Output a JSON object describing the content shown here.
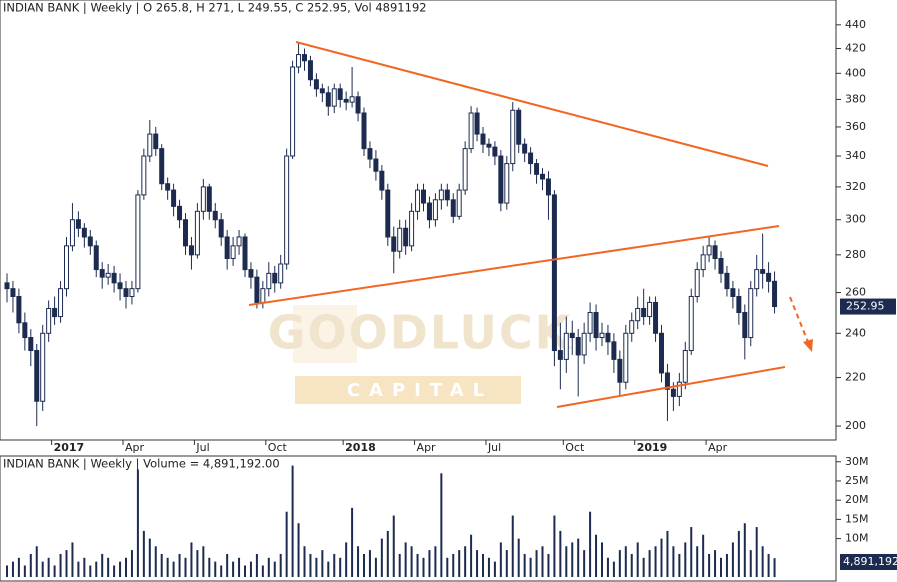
{
  "chart_data": [
    {
      "type": "candlestick",
      "title": "INDIAN BANK | Weekly | O 265.8, H 271, L 249.55, C 252.95, Vol 4891192",
      "categories": [
        null,
        null,
        null,
        null,
        null,
        null,
        null,
        null,
        "2017",
        null,
        null,
        null,
        null,
        null,
        null,
        null,
        null,
        null,
        null,
        null,
        "Apr",
        null,
        null,
        null,
        null,
        null,
        null,
        null,
        null,
        null,
        null,
        null,
        "Jul",
        null,
        null,
        null,
        null,
        null,
        null,
        null,
        null,
        null,
        null,
        null,
        "Oct",
        null,
        null,
        null,
        null,
        null,
        null,
        null,
        null,
        null,
        null,
        null,
        null,
        "2018",
        null,
        null,
        null,
        null,
        null,
        null,
        null,
        null,
        null,
        null,
        null,
        "Apr",
        null,
        null,
        null,
        null,
        null,
        null,
        null,
        null,
        null,
        null,
        null,
        "Jul",
        null,
        null,
        null,
        null,
        null,
        null,
        null,
        null,
        null,
        null,
        null,
        null,
        "Oct",
        null,
        null,
        null,
        null,
        null,
        null,
        null,
        null,
        null,
        null,
        null,
        "2019",
        null,
        null,
        null,
        null,
        null,
        null,
        null,
        null,
        null,
        null,
        null,
        "Apr",
        null,
        null,
        null,
        null,
        null,
        null,
        null,
        null,
        null,
        null,
        null
      ],
      "open": [
        265,
        262,
        258,
        245,
        238,
        232,
        210,
        240,
        252,
        248,
        262,
        285,
        300,
        295,
        290,
        285,
        272,
        268,
        270,
        265,
        262,
        258,
        262,
        315,
        340,
        355,
        345,
        322,
        318,
        308,
        300,
        285,
        280,
        305,
        320,
        305,
        300,
        290,
        278,
        285,
        290,
        272,
        268,
        255,
        262,
        270,
        265,
        275,
        340,
        405,
        415,
        410,
        395,
        388,
        385,
        375,
        388,
        380,
        378,
        382,
        370,
        345,
        338,
        330,
        318,
        290,
        282,
        295,
        285,
        305,
        318,
        310,
        300,
        312,
        318,
        312,
        302,
        318,
        345,
        370,
        355,
        348,
        346,
        340,
        310,
        335,
        372,
        348,
        342,
        335,
        328,
        325,
        315,
        232,
        228,
        240,
        238,
        230,
        240,
        250,
        238,
        240,
        236,
        228,
        218,
        240,
        246,
        252,
        248,
        255,
        240,
        222,
        215,
        212,
        218,
        232,
        258,
        272,
        280,
        285,
        278,
        270,
        262,
        258,
        250,
        238,
        262,
        272,
        270,
        265.8
      ],
      "high": [
        270,
        266,
        262,
        250,
        242,
        235,
        244,
        256,
        258,
        266,
        290,
        310,
        305,
        298,
        294,
        288,
        276,
        275,
        274,
        270,
        266,
        266,
        318,
        345,
        365,
        360,
        348,
        326,
        322,
        312,
        304,
        290,
        310,
        325,
        322,
        310,
        304,
        294,
        290,
        294,
        292,
        276,
        272,
        266,
        276,
        274,
        280,
        345,
        410,
        425,
        420,
        414,
        400,
        392,
        390,
        392,
        392,
        386,
        405,
        386,
        374,
        350,
        344,
        334,
        322,
        296,
        300,
        300,
        310,
        322,
        322,
        314,
        316,
        322,
        322,
        316,
        322,
        350,
        375,
        374,
        360,
        352,
        350,
        344,
        340,
        378,
        374,
        352,
        346,
        338,
        332,
        330,
        318,
        245,
        248,
        246,
        242,
        245,
        255,
        254,
        245,
        244,
        240,
        232,
        244,
        250,
        258,
        262,
        258,
        258,
        244,
        226,
        218,
        222,
        236,
        262,
        276,
        285,
        290,
        288,
        282,
        274,
        266,
        262,
        254,
        266,
        280,
        292,
        276,
        271
      ],
      "low": [
        255,
        250,
        240,
        232,
        225,
        200,
        206,
        236,
        244,
        245,
        258,
        282,
        290,
        284,
        280,
        268,
        262,
        264,
        260,
        256,
        252,
        254,
        260,
        312,
        336,
        340,
        318,
        312,
        302,
        295,
        280,
        272,
        278,
        300,
        300,
        295,
        285,
        272,
        274,
        280,
        268,
        262,
        252,
        252,
        258,
        260,
        262,
        272,
        338,
        400,
        402,
        390,
        382,
        378,
        368,
        370,
        374,
        372,
        374,
        364,
        340,
        332,
        324,
        312,
        285,
        270,
        278,
        280,
        282,
        300,
        305,
        295,
        296,
        306,
        308,
        298,
        300,
        315,
        342,
        350,
        342,
        340,
        334,
        305,
        306,
        330,
        342,
        336,
        328,
        322,
        318,
        300,
        225,
        215,
        222,
        230,
        212,
        226,
        236,
        232,
        234,
        230,
        222,
        212,
        215,
        236,
        242,
        244,
        244,
        236,
        218,
        202,
        206,
        208,
        215,
        230,
        255,
        268,
        276,
        272,
        265,
        258,
        252,
        244,
        228,
        234,
        258,
        262,
        260,
        249.55
      ],
      "close": [
        262,
        258,
        245,
        238,
        232,
        210,
        240,
        252,
        248,
        262,
        285,
        300,
        295,
        290,
        285,
        272,
        268,
        270,
        265,
        262,
        258,
        262,
        315,
        340,
        355,
        345,
        322,
        318,
        308,
        300,
        285,
        280,
        305,
        320,
        305,
        300,
        290,
        278,
        285,
        290,
        272,
        268,
        255,
        262,
        270,
        265,
        275,
        340,
        405,
        415,
        410,
        395,
        388,
        385,
        375,
        388,
        380,
        378,
        382,
        370,
        345,
        338,
        330,
        318,
        290,
        282,
        295,
        285,
        305,
        318,
        310,
        300,
        312,
        318,
        312,
        302,
        318,
        345,
        370,
        355,
        348,
        346,
        340,
        310,
        335,
        372,
        348,
        342,
        335,
        328,
        325,
        315,
        232,
        228,
        240,
        238,
        230,
        240,
        250,
        238,
        240,
        236,
        228,
        218,
        240,
        246,
        252,
        248,
        255,
        240,
        222,
        215,
        212,
        218,
        232,
        258,
        272,
        280,
        285,
        278,
        270,
        262,
        258,
        250,
        238,
        262,
        272,
        270,
        265.8,
        252.95
      ],
      "up_color": "#ffffff",
      "down_color": "#1c2b4f",
      "outline_color": "#1c2b4f",
      "log_scale": true,
      "ylim": [
        194.6,
        462
      ],
      "yticks": [
        200,
        220,
        240,
        260,
        280,
        300,
        320,
        340,
        360,
        380,
        400,
        420,
        440
      ],
      "watermark": [
        "GOODLUCK",
        "CAPITAL"
      ]
    },
    {
      "type": "bar",
      "title": "INDIAN BANK | Weekly | Volume = 4,891,192.00",
      "values": [
        3,
        4,
        5,
        3,
        6,
        8,
        4,
        5,
        3,
        6,
        7,
        9,
        4,
        5,
        3,
        4,
        6,
        5,
        3,
        4,
        5,
        7,
        28,
        12,
        10,
        8,
        6,
        5,
        4,
        6,
        5,
        9,
        7,
        8,
        5,
        4,
        3,
        6,
        4,
        5,
        3,
        4,
        6,
        3,
        5,
        4,
        6,
        17,
        29,
        14,
        8,
        6,
        5,
        7,
        4,
        6,
        5,
        9,
        18,
        8,
        6,
        7,
        5,
        10,
        12,
        16,
        6,
        9,
        8,
        6,
        5,
        7,
        8,
        27,
        5,
        6,
        7,
        8,
        11,
        7,
        6,
        5,
        4,
        9,
        7,
        16,
        10,
        6,
        5,
        7,
        8,
        6,
        16,
        12,
        8,
        9,
        10,
        7,
        17,
        11,
        9,
        5,
        4,
        7,
        8,
        6,
        9,
        5,
        7,
        8,
        10,
        12,
        8,
        6,
        9,
        13,
        8,
        11,
        6,
        7,
        5,
        6,
        9,
        12,
        14,
        7,
        13,
        8,
        6,
        4.891192
      ],
      "value_labels": [
        null,
        null,
        null,
        null,
        null,
        null,
        null,
        null,
        null,
        null,
        null,
        null,
        null,
        null,
        null,
        null,
        null,
        null,
        null,
        null,
        null,
        null,
        null,
        null,
        null,
        null,
        null,
        null,
        null,
        null,
        null,
        null,
        null,
        null,
        null,
        null,
        null,
        null,
        null,
        null,
        null,
        null,
        null,
        null,
        null,
        null,
        null,
        null,
        null,
        null,
        null,
        null,
        null,
        null,
        null,
        null,
        null,
        null,
        null,
        null,
        null,
        null,
        null,
        null,
        null,
        null,
        null,
        null,
        null,
        null,
        null,
        null,
        null,
        null,
        null,
        null,
        null,
        null,
        null,
        null,
        null,
        null,
        null,
        null,
        null,
        null,
        null,
        null,
        null,
        null,
        null,
        null,
        null,
        null,
        null,
        null,
        null,
        null,
        null,
        null,
        null,
        null,
        null,
        null,
        null,
        null,
        null,
        null,
        null,
        null,
        null,
        null,
        null,
        null,
        null,
        null,
        null,
        null,
        null,
        null,
        null,
        null,
        null,
        null,
        null,
        null,
        null,
        null,
        null,
        "4,891,192"
      ],
      "color": "#1c2b4f",
      "ylim": [
        0,
        31.5
      ],
      "yticks": [
        {
          "value": 10,
          "label": "10M"
        },
        {
          "value": 15,
          "label": "15M"
        },
        {
          "value": 20,
          "label": "20M"
        },
        {
          "value": 25,
          "label": "25M"
        },
        {
          "value": 30,
          "label": "30M"
        }
      ]
    }
  ]
}
